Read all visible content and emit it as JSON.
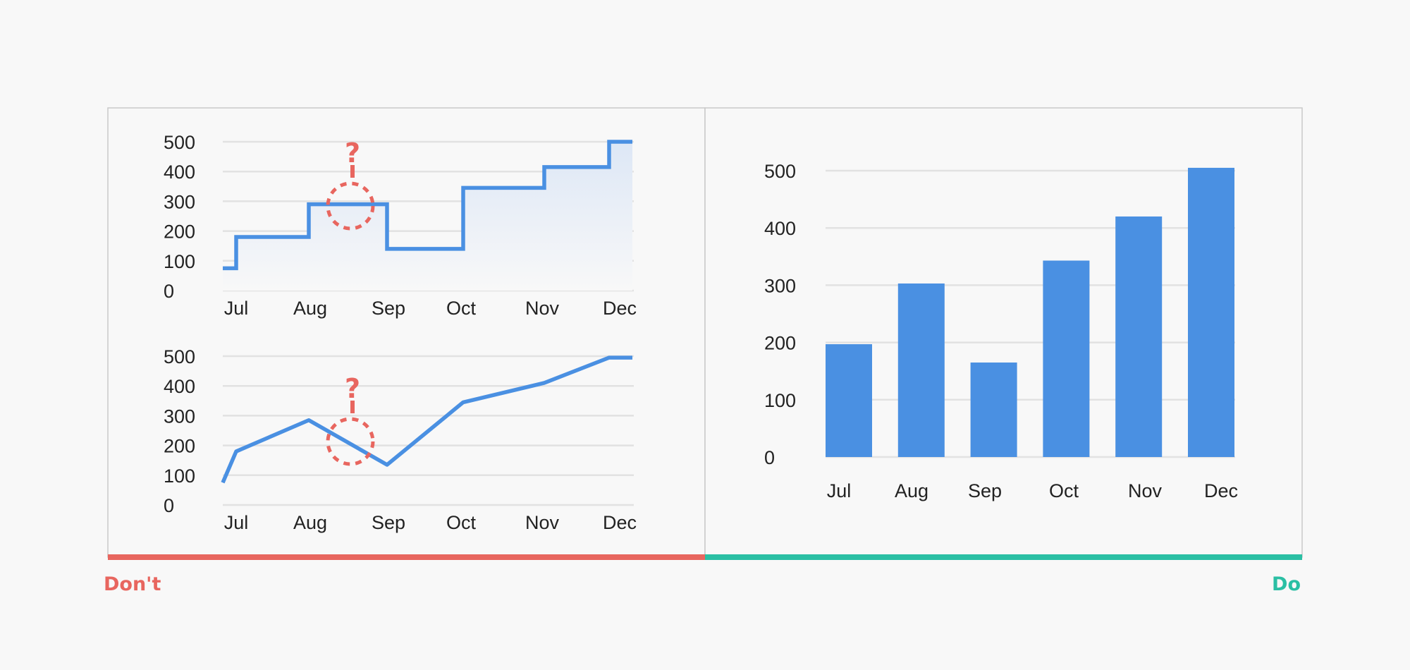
{
  "colors": {
    "series": "#4a90e2",
    "dont": "#e8665f",
    "do": "#2bbfa4",
    "grid": "#e2e2e2",
    "border": "#c9c9c9",
    "background": "#f8f8f8",
    "annotation": "#e8665f"
  },
  "labels": {
    "dont": "Don't",
    "do": "Do",
    "question_mark": "?"
  },
  "chart_data": [
    {
      "type": "line",
      "variant": "step",
      "panel": "dont",
      "categories": [
        "Jul",
        "Aug",
        "Sep",
        "Oct",
        "Nov",
        "Dec"
      ],
      "start_value": 75,
      "values": [
        180,
        290,
        140,
        345,
        415,
        500
      ],
      "yticks": [
        "0",
        "100",
        "200",
        "300",
        "400",
        "500"
      ],
      "ylim": [
        0,
        500
      ],
      "grid": true,
      "area_fill": true,
      "annotation": "?"
    },
    {
      "type": "line",
      "panel": "dont",
      "categories": [
        "Jul",
        "Aug",
        "Sep",
        "Oct",
        "Nov",
        "Dec"
      ],
      "start_value": 75,
      "values": [
        180,
        285,
        135,
        345,
        410,
        495
      ],
      "yticks": [
        "0",
        "100",
        "200",
        "300",
        "400",
        "500"
      ],
      "ylim": [
        0,
        500
      ],
      "grid": true,
      "annotation": "?"
    },
    {
      "type": "bar",
      "panel": "do",
      "categories": [
        "Jul",
        "Aug",
        "Sep",
        "Oct",
        "Nov",
        "Dec"
      ],
      "values": [
        197,
        303,
        165,
        343,
        420,
        505
      ],
      "yticks": [
        "0",
        "100",
        "200",
        "300",
        "400",
        "500"
      ],
      "ylim": [
        0,
        500
      ],
      "grid": true
    }
  ]
}
